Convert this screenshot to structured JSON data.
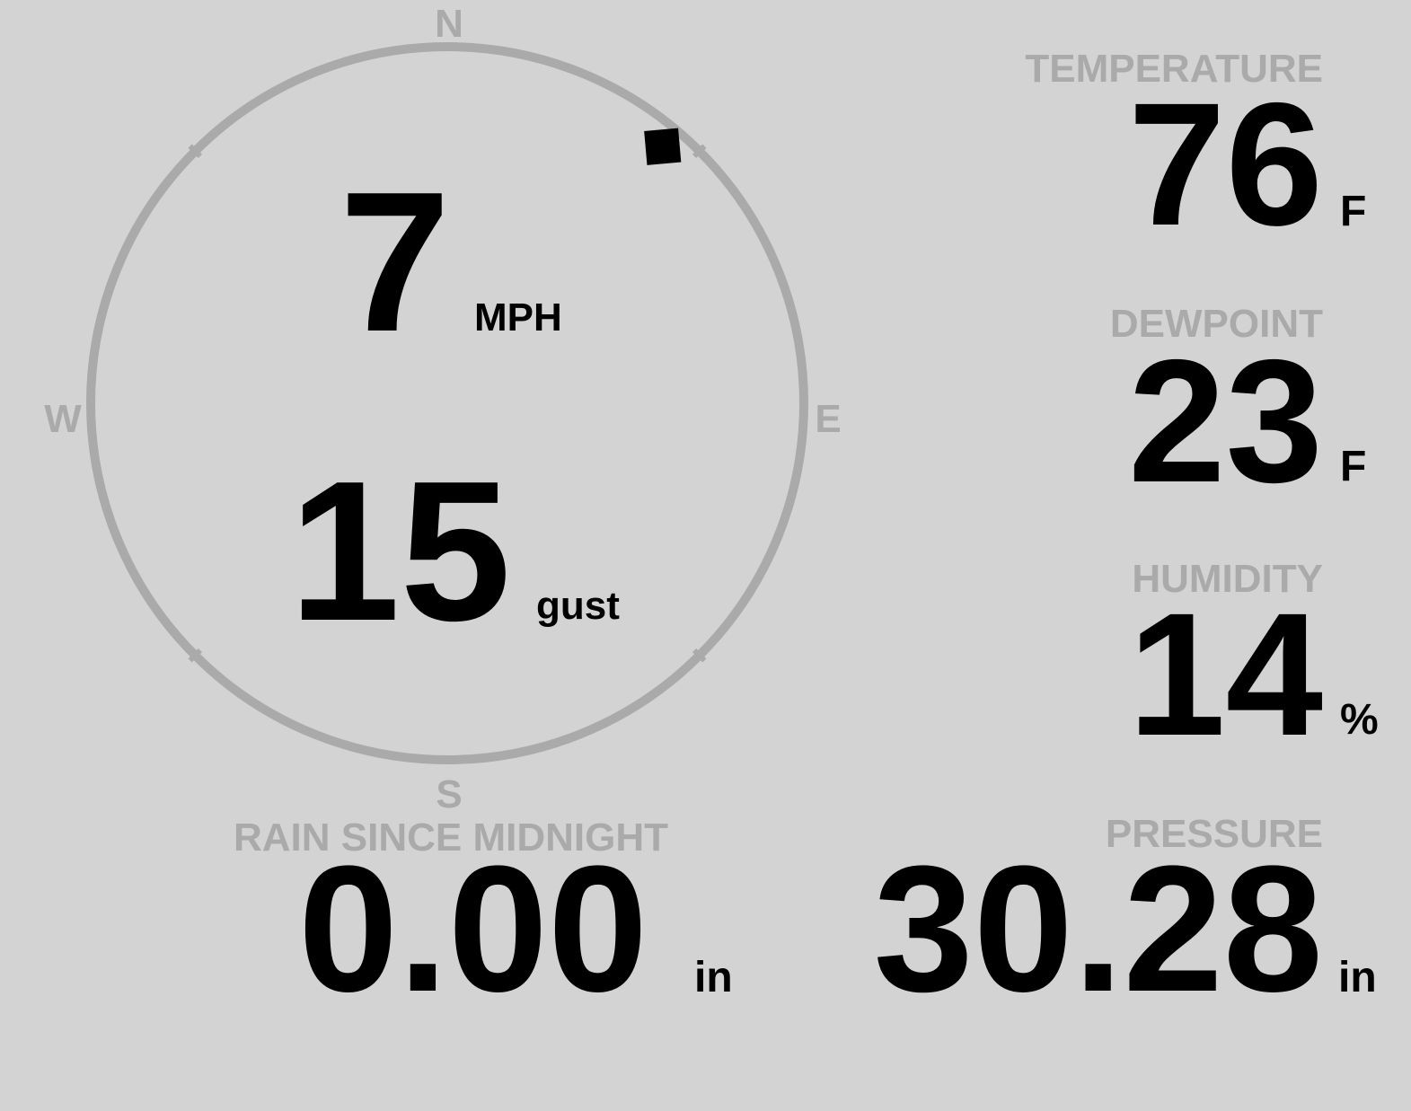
{
  "compass": {
    "north_label": "N",
    "east_label": "E",
    "south_label": "S",
    "west_label": "W",
    "wind_direction_deg": 40,
    "ring_color": "#aaaaaa",
    "marker_color": "#000000"
  },
  "wind": {
    "speed": "7",
    "speed_unit": "MPH",
    "gust": "15",
    "gust_unit": "gust"
  },
  "temperature": {
    "label": "TEMPERATURE",
    "value": "76",
    "unit": "F"
  },
  "dewpoint": {
    "label": "DEWPOINT",
    "value": "23",
    "unit": "F"
  },
  "humidity": {
    "label": "HUMIDITY",
    "value": "14",
    "unit": "%"
  },
  "rain": {
    "label": "RAIN SINCE MIDNIGHT",
    "value": "0.00",
    "unit": "in"
  },
  "pressure": {
    "label": "PRESSURE",
    "value": "30.28",
    "unit": "in"
  },
  "colors": {
    "background": "#d3d3d3",
    "label": "#aaaaaa",
    "value": "#000000"
  }
}
